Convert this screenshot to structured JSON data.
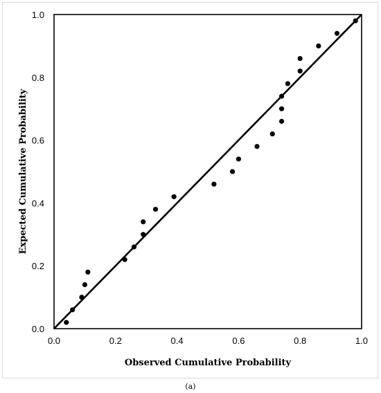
{
  "chart_data": {
    "type": "scatter",
    "title": "",
    "xlabel": "Observed Cumulative Probability",
    "ylabel": "Expected Cumulative Probability",
    "xlim": [
      0,
      1
    ],
    "ylim": [
      0,
      1
    ],
    "xticks": [
      "0.0",
      "0.2",
      "0.4",
      "0.6",
      "0.8",
      "1.0"
    ],
    "yticks": [
      "0.0",
      "0.2",
      "0.4",
      "0.6",
      "0.8",
      "1.0"
    ],
    "grid": false,
    "legend": "none",
    "reference_line": {
      "from": [
        0,
        0
      ],
      "to": [
        1,
        1
      ]
    },
    "points": [
      {
        "x": 0.04,
        "y": 0.02
      },
      {
        "x": 0.06,
        "y": 0.06
      },
      {
        "x": 0.09,
        "y": 0.1
      },
      {
        "x": 0.1,
        "y": 0.14
      },
      {
        "x": 0.11,
        "y": 0.18
      },
      {
        "x": 0.23,
        "y": 0.22
      },
      {
        "x": 0.26,
        "y": 0.26
      },
      {
        "x": 0.29,
        "y": 0.3
      },
      {
        "x": 0.29,
        "y": 0.34
      },
      {
        "x": 0.33,
        "y": 0.38
      },
      {
        "x": 0.39,
        "y": 0.42
      },
      {
        "x": 0.52,
        "y": 0.46
      },
      {
        "x": 0.58,
        "y": 0.5
      },
      {
        "x": 0.6,
        "y": 0.54
      },
      {
        "x": 0.66,
        "y": 0.58
      },
      {
        "x": 0.71,
        "y": 0.62
      },
      {
        "x": 0.74,
        "y": 0.66
      },
      {
        "x": 0.74,
        "y": 0.7
      },
      {
        "x": 0.74,
        "y": 0.74
      },
      {
        "x": 0.76,
        "y": 0.78
      },
      {
        "x": 0.8,
        "y": 0.82
      },
      {
        "x": 0.8,
        "y": 0.86
      },
      {
        "x": 0.86,
        "y": 0.9
      },
      {
        "x": 0.92,
        "y": 0.94
      },
      {
        "x": 0.98,
        "y": 0.98
      }
    ],
    "colors": {
      "points": "#000000",
      "line": "#000000",
      "border": "#d9d9d9"
    }
  },
  "caption": "(a)"
}
